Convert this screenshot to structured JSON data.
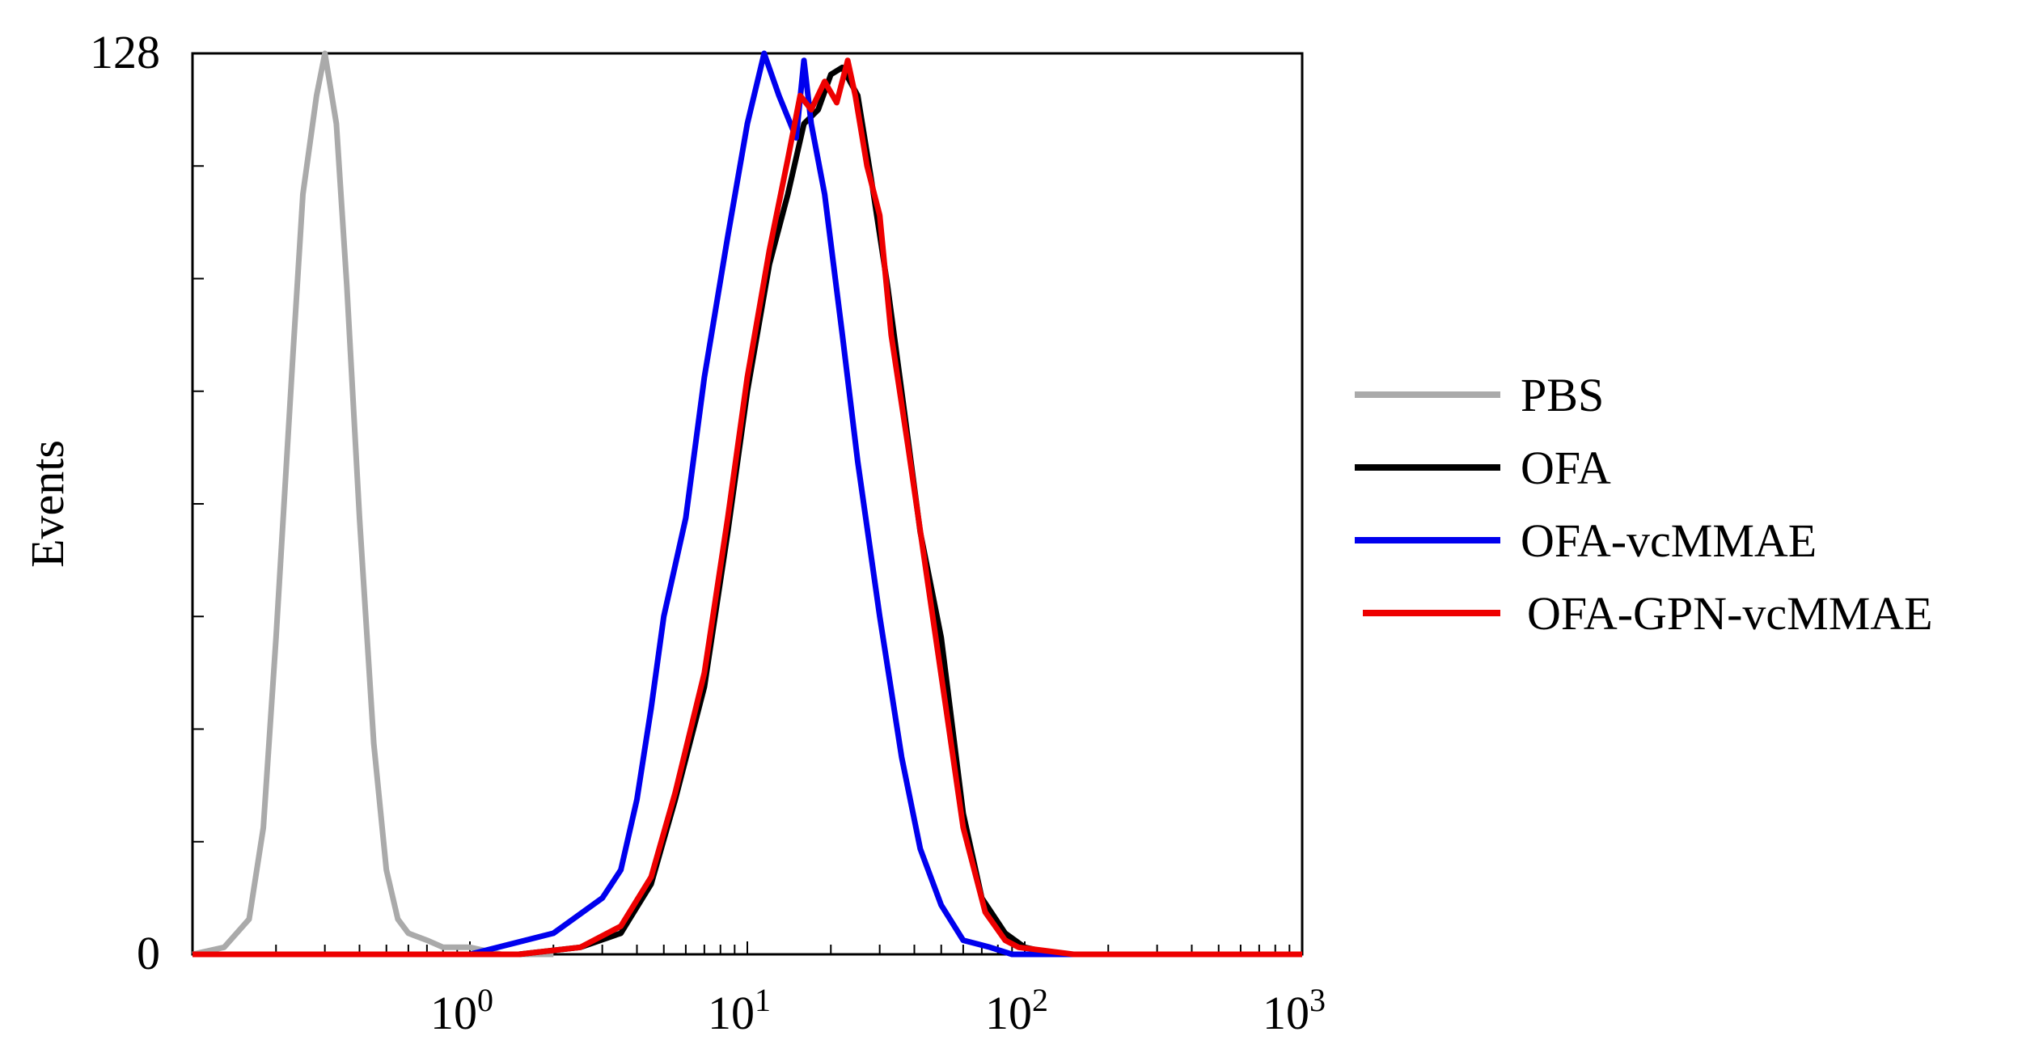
{
  "chart_data": {
    "type": "line",
    "title": "",
    "xlabel": "",
    "ylabel": "Events",
    "x_scale": "log",
    "xlim": [
      0.1,
      1000
    ],
    "ylim": [
      0,
      128
    ],
    "x_ticks": [
      {
        "base": "10",
        "exp": "0",
        "value": 1
      },
      {
        "base": "10",
        "exp": "1",
        "value": 10
      },
      {
        "base": "10",
        "exp": "2",
        "value": 100
      },
      {
        "base": "10",
        "exp": "3",
        "value": 1000
      }
    ],
    "y_ticks": [
      {
        "label": "0",
        "value": 0
      },
      {
        "label": "128",
        "value": 128
      }
    ],
    "grid": false,
    "legend_position": "right",
    "series": [
      {
        "name": "PBS",
        "color": "#aaaaaa",
        "x": [
          0.1,
          0.13,
          0.16,
          0.18,
          0.2,
          0.23,
          0.25,
          0.28,
          0.3,
          0.33,
          0.36,
          0.4,
          0.45,
          0.5,
          0.55,
          0.6,
          0.7,
          0.8,
          1.0,
          1.3,
          2.0
        ],
        "y": [
          0,
          1,
          5,
          18,
          45,
          85,
          108,
          122,
          128,
          118,
          95,
          62,
          30,
          12,
          5,
          3,
          2,
          1,
          1,
          0,
          0
        ]
      },
      {
        "name": "OFA",
        "color": "#000000",
        "x": [
          0.1,
          1.5,
          2.5,
          3.5,
          4.5,
          5.5,
          7,
          8.5,
          10,
          12,
          14,
          16,
          18,
          20,
          22,
          25,
          28,
          32,
          36,
          42,
          50,
          60,
          70,
          85,
          100,
          130,
          150,
          1000
        ],
        "y": [
          0,
          0,
          1,
          3,
          10,
          22,
          38,
          60,
          80,
          98,
          108,
          118,
          120,
          125,
          126,
          122,
          110,
          95,
          80,
          60,
          45,
          20,
          8,
          3,
          1,
          0,
          0,
          0
        ]
      },
      {
        "name": "OFA-vcMMAE",
        "color": "#0000ee",
        "x": [
          0.1,
          1.0,
          2.0,
          3.0,
          3.5,
          4.0,
          4.5,
          5.0,
          6.0,
          7.0,
          8.5,
          10,
          11.5,
          13,
          15,
          16,
          17,
          19,
          22,
          25,
          30,
          36,
          42,
          50,
          60,
          75,
          90,
          1000
        ],
        "y": [
          0,
          0,
          3,
          8,
          12,
          22,
          35,
          48,
          62,
          82,
          102,
          118,
          128,
          122,
          116,
          127,
          118,
          108,
          88,
          70,
          48,
          28,
          15,
          7,
          2,
          1,
          0,
          0
        ]
      },
      {
        "name": "OFA-GPN-vcMMAE",
        "color": "#ee0000",
        "x": [
          0.1,
          1.5,
          2.5,
          3.5,
          4.5,
          5.5,
          7,
          8.5,
          10,
          12,
          14,
          15.5,
          17,
          19,
          21,
          23,
          24.5,
          27,
          30,
          33,
          38,
          45,
          52,
          60,
          72,
          85,
          95,
          150,
          1000
        ],
        "y": [
          0,
          0,
          1,
          4,
          11,
          23,
          40,
          62,
          82,
          100,
          113,
          122,
          120,
          124,
          121,
          127,
          122,
          112,
          105,
          88,
          72,
          52,
          35,
          18,
          6,
          2,
          1,
          0,
          0
        ]
      }
    ]
  }
}
